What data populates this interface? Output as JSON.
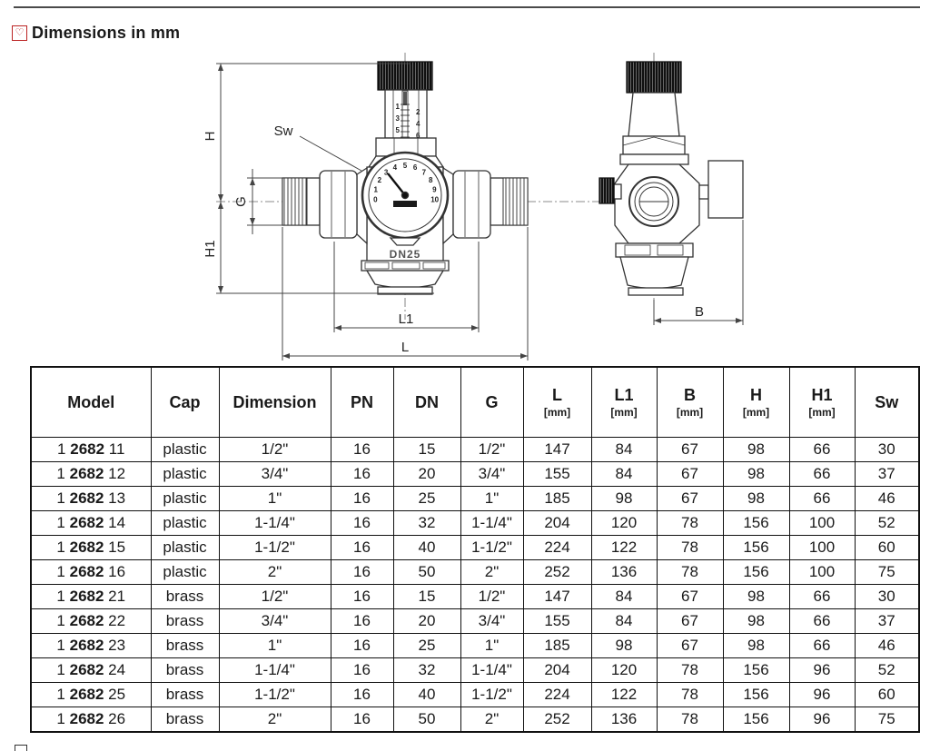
{
  "header": {
    "title": "Dimensions in mm",
    "icon": "heart"
  },
  "drawing": {
    "front_view": {
      "dim_h": "H",
      "dim_g": "G",
      "dim_h1": "H1",
      "dim_sw": "Sw",
      "dim_l1": "L1",
      "dim_l": "L",
      "body_label": "DN25",
      "cap_scale": [
        "1",
        "2",
        "3",
        "4",
        "5",
        "6"
      ],
      "gauge_scale": [
        "0",
        "1",
        "2",
        "3",
        "4",
        "5",
        "6",
        "7",
        "8",
        "9",
        "10"
      ]
    },
    "side_view": {
      "dim_b": "B"
    }
  },
  "table": {
    "columns": [
      {
        "label": "Model",
        "unit": ""
      },
      {
        "label": "Cap",
        "unit": ""
      },
      {
        "label": "Dimension",
        "unit": ""
      },
      {
        "label": "PN",
        "unit": ""
      },
      {
        "label": "DN",
        "unit": ""
      },
      {
        "label": "G",
        "unit": ""
      },
      {
        "label": "L",
        "unit": "[mm]"
      },
      {
        "label": "L1",
        "unit": "[mm]"
      },
      {
        "label": "B",
        "unit": "[mm]"
      },
      {
        "label": "H",
        "unit": "[mm]"
      },
      {
        "label": "H1",
        "unit": "[mm]"
      },
      {
        "label": "Sw",
        "unit": ""
      }
    ],
    "rows": [
      {
        "model": [
          "1",
          "2682",
          "11"
        ],
        "cells": [
          "plastic",
          "1/2\"",
          "16",
          "15",
          "1/2\"",
          "147",
          "84",
          "67",
          "98",
          "66",
          "30"
        ]
      },
      {
        "model": [
          "1",
          "2682",
          "12"
        ],
        "cells": [
          "plastic",
          "3/4\"",
          "16",
          "20",
          "3/4\"",
          "155",
          "84",
          "67",
          "98",
          "66",
          "37"
        ]
      },
      {
        "model": [
          "1",
          "2682",
          "13"
        ],
        "cells": [
          "plastic",
          "1\"",
          "16",
          "25",
          "1\"",
          "185",
          "98",
          "67",
          "98",
          "66",
          "46"
        ]
      },
      {
        "model": [
          "1",
          "2682",
          "14"
        ],
        "cells": [
          "plastic",
          "1-1/4\"",
          "16",
          "32",
          "1-1/4\"",
          "204",
          "120",
          "78",
          "156",
          "100",
          "52"
        ]
      },
      {
        "model": [
          "1",
          "2682",
          "15"
        ],
        "cells": [
          "plastic",
          "1-1/2\"",
          "16",
          "40",
          "1-1/2\"",
          "224",
          "122",
          "78",
          "156",
          "100",
          "60"
        ]
      },
      {
        "model": [
          "1",
          "2682",
          "16"
        ],
        "cells": [
          "plastic",
          "2\"",
          "16",
          "50",
          "2\"",
          "252",
          "136",
          "78",
          "156",
          "100",
          "75"
        ]
      },
      {
        "model": [
          "1",
          "2682",
          "21"
        ],
        "cells": [
          "brass",
          "1/2\"",
          "16",
          "15",
          "1/2\"",
          "147",
          "84",
          "67",
          "98",
          "66",
          "30"
        ]
      },
      {
        "model": [
          "1",
          "2682",
          "22"
        ],
        "cells": [
          "brass",
          "3/4\"",
          "16",
          "20",
          "3/4\"",
          "155",
          "84",
          "67",
          "98",
          "66",
          "37"
        ]
      },
      {
        "model": [
          "1",
          "2682",
          "23"
        ],
        "cells": [
          "brass",
          "1\"",
          "16",
          "25",
          "1\"",
          "185",
          "98",
          "67",
          "98",
          "66",
          "46"
        ]
      },
      {
        "model": [
          "1",
          "2682",
          "24"
        ],
        "cells": [
          "brass",
          "1-1/4\"",
          "16",
          "32",
          "1-1/4\"",
          "204",
          "120",
          "78",
          "156",
          "96",
          "52"
        ]
      },
      {
        "model": [
          "1",
          "2682",
          "25"
        ],
        "cells": [
          "brass",
          "1-1/2\"",
          "16",
          "40",
          "1-1/2\"",
          "224",
          "122",
          "78",
          "156",
          "96",
          "60"
        ]
      },
      {
        "model": [
          "1",
          "2682",
          "26"
        ],
        "cells": [
          "brass",
          "2\"",
          "16",
          "50",
          "2\"",
          "252",
          "136",
          "78",
          "156",
          "96",
          "75"
        ]
      }
    ]
  }
}
